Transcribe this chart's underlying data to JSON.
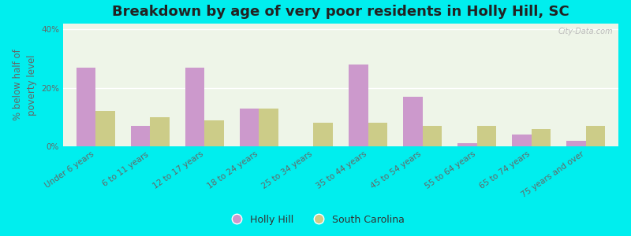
{
  "title": "Breakdown by age of very poor residents in Holly Hill, SC",
  "ylabel": "% below half of\npoverty level",
  "categories": [
    "Under 6 years",
    "6 to 11 years",
    "12 to 17 years",
    "18 to 24 years",
    "25 to 34 years",
    "35 to 44 years",
    "45 to 54 years",
    "55 to 64 years",
    "65 to 74 years",
    "75 years and over"
  ],
  "holly_hill": [
    27,
    7,
    27,
    13,
    0,
    28,
    17,
    1,
    4,
    2
  ],
  "south_carolina": [
    12,
    10,
    9,
    13,
    8,
    8,
    7,
    7,
    6,
    7
  ],
  "holly_hill_color": "#cc99cc",
  "sc_color": "#cccc88",
  "background_color": "#00eeee",
  "plot_bg_color": "#eef5e8",
  "bar_width": 0.35,
  "ylim": [
    0,
    42
  ],
  "ytick_labels": [
    "0%",
    "20%",
    "40%"
  ],
  "ytick_vals": [
    0,
    20,
    40
  ],
  "grid_color": "#ffffff",
  "title_fontsize": 13,
  "ylabel_fontsize": 8.5,
  "tick_fontsize": 7.5,
  "legend_fontsize": 9,
  "axis_label_color": "#666666",
  "watermark": "City-Data.com"
}
